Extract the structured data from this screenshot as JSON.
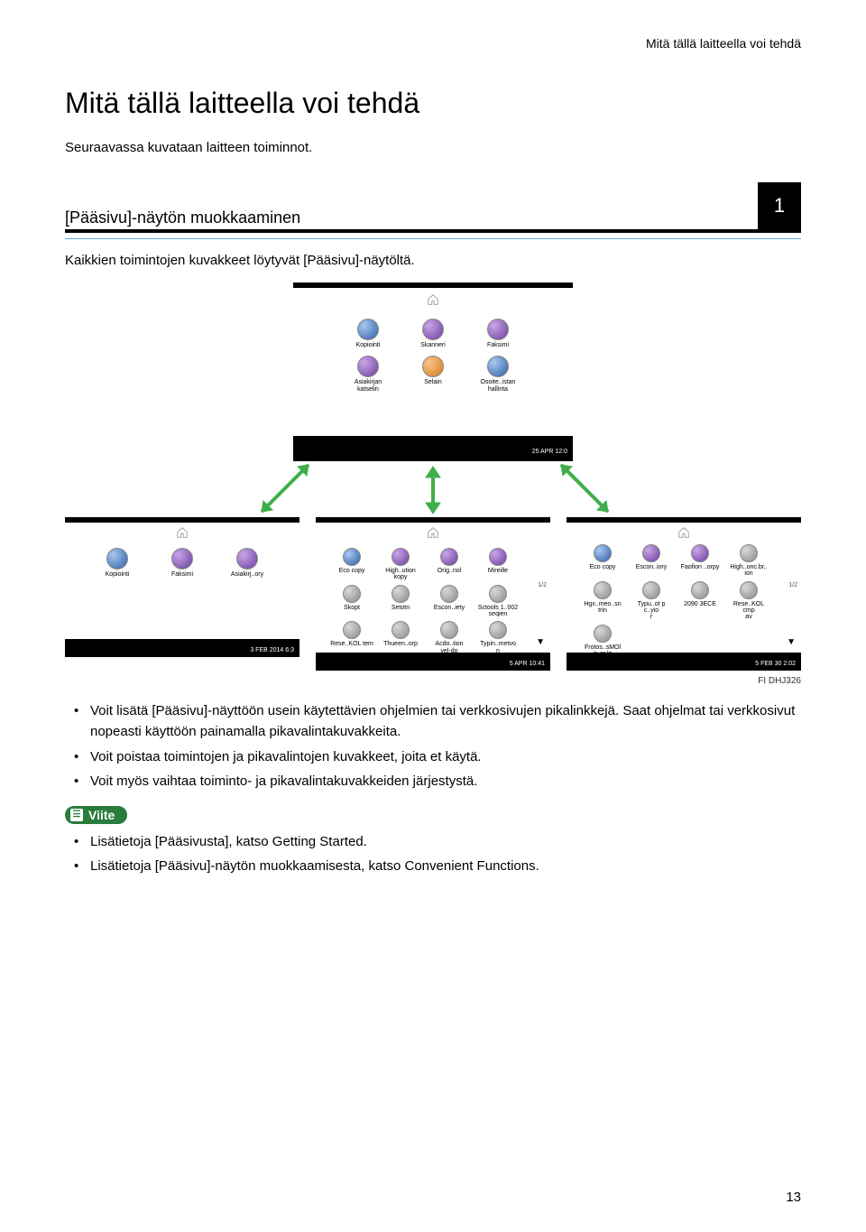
{
  "running_head": "Mitä tällä laitteella voi tehdä",
  "main_title": "Mitä tällä laitteella voi tehdä",
  "intro_text": "Seuraavassa kuvataan laitteen toiminnot.",
  "section_title": "[Pääsivu]-näytön muokkaaminen",
  "tab_number": "1",
  "subtitle_text": "Kaikkien toimintojen kuvakkeet löytyvät [Pääsivu]-näytöltä.",
  "figure_id": "FI DHJ326",
  "diagram": {
    "top_panel": {
      "date": "25 APR\n12:0",
      "icons": [
        {
          "label": "Kopiointi",
          "color": "blue"
        },
        {
          "label": "Skanneri",
          "color": "purple"
        },
        {
          "label": "Faksimi",
          "color": "purple"
        },
        {
          "label": "Asiakirjan\nkatselin",
          "color": "purple"
        },
        {
          "label": "Selain",
          "color": "orange"
        },
        {
          "label": "Osoite..istan\nhallinta",
          "color": "blue"
        }
      ]
    },
    "bottom_left": {
      "date": "3 FEB 2014\n6:3",
      "icons": [
        {
          "label": "Kopiointi",
          "color": "blue"
        },
        {
          "label": "Faksimi",
          "color": "purple"
        },
        {
          "label": "Asiakirj..ory",
          "color": "purple"
        }
      ]
    },
    "bottom_middle": {
      "date": "5 APR\n10:41",
      "page": "1/2",
      "icons_row1": [
        {
          "label": "Eco copy",
          "color": "blue"
        },
        {
          "label": "High..ution\nkopy",
          "color": "purple"
        },
        {
          "label": "Orig..nol",
          "color": "purple"
        },
        {
          "label": "Mireille",
          "color": "purple"
        }
      ],
      "icons_row2": [
        {
          "label": "Skopt",
          "color": "gray"
        },
        {
          "label": "Setotn",
          "color": "gray"
        },
        {
          "label": "Escon..iety",
          "color": "gray"
        },
        {
          "label": "Sctools 1..002\nseqien",
          "color": "gray"
        }
      ],
      "icons_row3": [
        {
          "label": "Rese..KOL tem",
          "color": "gray"
        },
        {
          "label": "Thueen..orp",
          "color": "gray"
        },
        {
          "label": "Acdo..tion\nvel-do",
          "color": "gray"
        },
        {
          "label": "Typin..metvo\nn",
          "color": "gray"
        }
      ]
    },
    "bottom_right": {
      "date": "5 FEB 30\n2:02",
      "page": "1/2",
      "icons_row1": [
        {
          "label": "Eco copy",
          "color": "blue"
        },
        {
          "label": "Escon..iory",
          "color": "purple"
        },
        {
          "label": "Faofion ..orpy",
          "color": "purple"
        }
      ],
      "icons_row2": [
        {
          "label": "High..onc.br..\nion",
          "color": "gray"
        },
        {
          "label": "Hgx..meo..sn\ntrin",
          "color": "gray"
        },
        {
          "label": "Typu..ot p c..yio\nr",
          "color": "gray"
        },
        {
          "label": "2090 3ECE",
          "color": "gray"
        }
      ],
      "icons_row3": [
        {
          "label": "Rese..KOL cmp\nav",
          "color": "gray"
        },
        {
          "label": "Frotos..sMOl\nin er lp",
          "color": "gray"
        }
      ]
    },
    "arrow_color": "#3fae4a"
  },
  "bullets_main": [
    "Voit lisätä [Pääsivu]-näyttöön usein käytettävien ohjelmien tai verkkosivujen pikalinkkejä. Saat ohjelmat tai verkkosivut nopeasti käyttöön painamalla pikavalintakuvakkeita.",
    "Voit poistaa toimintojen ja pikavalintojen kuvakkeet, joita et käytä.",
    "Voit myös vaihtaa toiminto- ja pikavalintakuvakkeiden järjestystä."
  ],
  "ref_label": "Viite",
  "bullets_ref": [
    "Lisätietoja [Pääsivusta], katso Getting Started.",
    "Lisätietoja [Pääsivu]-näytön muokkaamisesta, katso Convenient Functions."
  ],
  "page_number": "13",
  "colors": {
    "accent_green": "#2a7c3c",
    "arrow_green": "#3fae4a",
    "rule_blue": "#6aa9d9",
    "black": "#000000"
  }
}
